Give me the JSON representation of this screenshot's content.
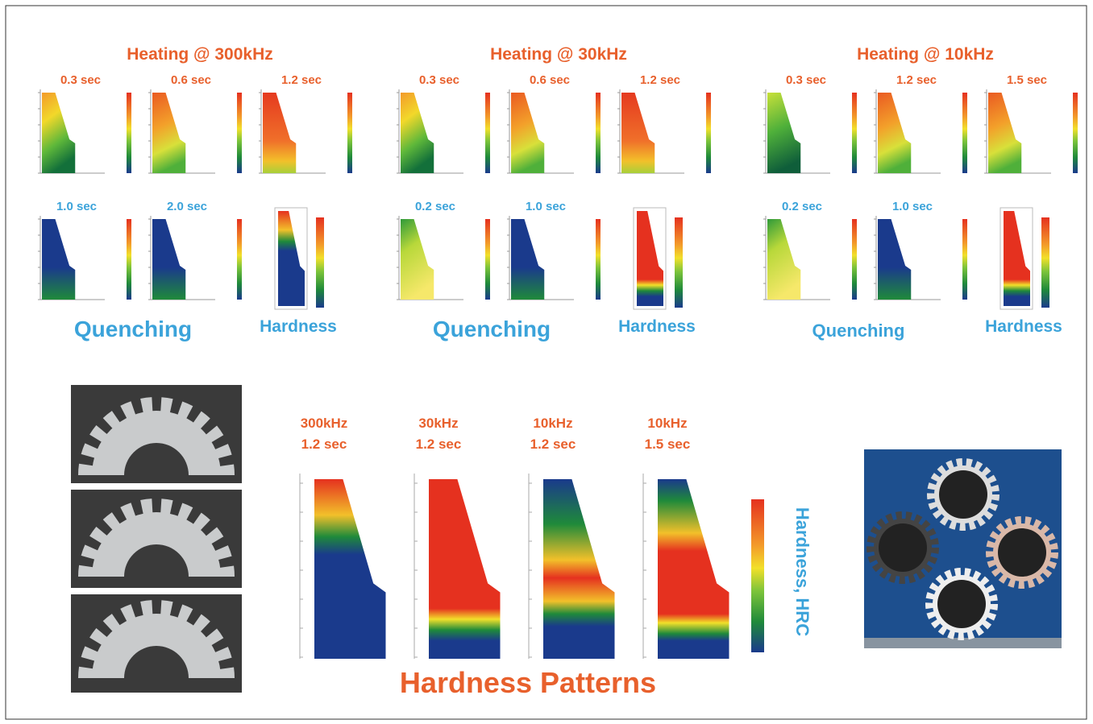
{
  "groups": [
    {
      "title": "Heating @ 300kHz",
      "heating": [
        "0.3 sec",
        "0.6 sec",
        "1.2 sec"
      ],
      "quenching_times": [
        "1.0 sec",
        "2.0 sec"
      ],
      "quenching": "Quenching",
      "hardness": "Hardness"
    },
    {
      "title": "Heating @ 30kHz",
      "heating": [
        "0.3 sec",
        "0.6 sec",
        "1.2 sec"
      ],
      "quenching_times": [
        "0.2 sec",
        "1.0 sec"
      ],
      "quenching": "Quenching",
      "hardness": "Hardness"
    },
    {
      "title": "Heating @ 10kHz",
      "heating": [
        "0.3 sec",
        "1.2 sec",
        "1.5 sec"
      ],
      "quenching_times": [
        "0.2 sec",
        "1.0 sec"
      ],
      "quenching": "Quenching",
      "hardness": "Hardness"
    }
  ],
  "patterns": {
    "title": "Hardness Patterns",
    "items": [
      {
        "frequency": "300kHz",
        "time": "1.2 sec"
      },
      {
        "frequency": "30kHz",
        "time": "1.2 sec"
      },
      {
        "frequency": "10kHz",
        "time": "1.2 sec"
      },
      {
        "frequency": "10kHz",
        "time": "1.5 sec"
      }
    ],
    "colorbar_label": "Hardness, HRC"
  }
}
